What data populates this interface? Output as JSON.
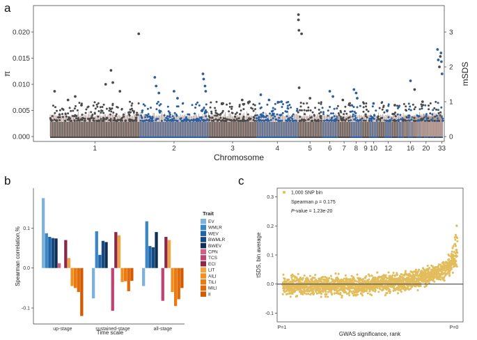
{
  "panel_labels": {
    "a": "a",
    "b": "b",
    "c": "c"
  },
  "colors": {
    "chr_dark": "#4a4a4a",
    "chr_blue": "#2a5fa0",
    "pi_line": "#b49a92",
    "gold": "#e3bd5c",
    "traits": [
      "#7fb2d8",
      "#3a86c4",
      "#1e64a6",
      "#174b80",
      "#0f3055",
      "#d45f86",
      "#bd4572",
      "#8b2747",
      "#f7a241",
      "#f19020",
      "#ea7a12",
      "#e06a08",
      "#d45a00"
    ]
  },
  "chart_data": [
    {
      "id": "a",
      "type": "scatter",
      "title": "",
      "xlabel": "Chromosome",
      "ylabel_left": "π",
      "ylabel_right": "mSDS",
      "ylim_left": [
        0,
        0.024
      ],
      "ylim_right": [
        0,
        3.6
      ],
      "yticks_left": [
        "0.000",
        "0.005",
        "0.010",
        "0.015",
        "0.020"
      ],
      "yticks_left_values": [
        0,
        0.005,
        0.01,
        0.015,
        0.02
      ],
      "yticks_right": [
        "0",
        "1",
        "2",
        "3"
      ],
      "yticks_right_values": [
        0,
        1,
        2,
        3
      ],
      "chromosomes": [
        {
          "label": "1",
          "len": 26,
          "color": "dark"
        },
        {
          "label": "2",
          "len": 20,
          "color": "blue"
        },
        {
          "label": "3",
          "len": 14,
          "color": "dark"
        },
        {
          "label": "4",
          "len": 12,
          "color": "blue"
        },
        {
          "label": "5",
          "len": 7,
          "color": "dark"
        },
        {
          "label": "6",
          "len": 4.5,
          "color": "blue"
        },
        {
          "label": "7",
          "len": 3.8,
          "color": "dark"
        },
        {
          "label": "8",
          "len": 3.2,
          "color": "blue"
        },
        {
          "label": "9",
          "len": 2.3,
          "color": "dark"
        },
        {
          "label": "10",
          "len": 2.3,
          "color": "blue"
        },
        {
          "label": "",
          "len": 2.1,
          "color": "dark"
        },
        {
          "label": "12",
          "len": 2.1,
          "color": "blue"
        },
        {
          "label": "",
          "len": 1.7,
          "color": "dark"
        },
        {
          "label": "",
          "len": 1.6,
          "color": "blue"
        },
        {
          "label": "",
          "len": 1.4,
          "color": "dark"
        },
        {
          "label": "16",
          "len": 1.4,
          "color": "blue"
        },
        {
          "label": "",
          "len": 1.2,
          "color": "dark"
        },
        {
          "label": "",
          "len": 1.1,
          "color": "blue"
        },
        {
          "label": "",
          "len": 1.0,
          "color": "dark"
        },
        {
          "label": "20",
          "len": 1.0,
          "color": "blue"
        },
        {
          "label": "",
          "len": 0.9,
          "color": "dark"
        },
        {
          "label": "",
          "len": 0.8,
          "color": "blue"
        },
        {
          "label": "",
          "len": 0.8,
          "color": "dark"
        },
        {
          "label": "",
          "len": 0.7,
          "color": "blue"
        },
        {
          "label": "",
          "len": 0.6,
          "color": "dark"
        },
        {
          "label": "33",
          "len": 0.6,
          "color": "blue"
        }
      ],
      "outliers_mSDS": [
        {
          "chr": 0,
          "pos": 0.05,
          "v": 1.3
        },
        {
          "chr": 0,
          "pos": 0.2,
          "v": 1.05
        },
        {
          "chr": 0,
          "pos": 0.28,
          "v": 1.15
        },
        {
          "chr": 0,
          "pos": 0.35,
          "v": 0.9
        },
        {
          "chr": 0,
          "pos": 0.62,
          "v": 1.5
        },
        {
          "chr": 0,
          "pos": 0.68,
          "v": 1.9
        },
        {
          "chr": 0,
          "pos": 0.7,
          "v": 1.55
        },
        {
          "chr": 0,
          "pos": 0.78,
          "v": 1.3
        },
        {
          "chr": 0,
          "pos": 0.99,
          "v": 2.95
        },
        {
          "chr": 1,
          "pos": 0.22,
          "v": 1.7
        },
        {
          "chr": 1,
          "pos": 0.24,
          "v": 1.45
        },
        {
          "chr": 1,
          "pos": 0.28,
          "v": 1.25
        },
        {
          "chr": 1,
          "pos": 0.5,
          "v": 1.3
        },
        {
          "chr": 1,
          "pos": 0.55,
          "v": 1.1
        },
        {
          "chr": 1,
          "pos": 0.92,
          "v": 1.8
        },
        {
          "chr": 1,
          "pos": 0.93,
          "v": 1.65
        },
        {
          "chr": 1,
          "pos": 0.95,
          "v": 1.45
        },
        {
          "chr": 1,
          "pos": 0.96,
          "v": 1.3
        },
        {
          "chr": 2,
          "pos": 0.3,
          "v": 0.95
        },
        {
          "chr": 2,
          "pos": 0.7,
          "v": 1.05
        },
        {
          "chr": 2,
          "pos": 0.85,
          "v": 1.0
        },
        {
          "chr": 3,
          "pos": 0.1,
          "v": 1.2
        },
        {
          "chr": 3,
          "pos": 0.3,
          "v": 1.05
        },
        {
          "chr": 3,
          "pos": 0.6,
          "v": 1.0
        },
        {
          "chr": 4,
          "pos": 0.02,
          "v": 3.5
        },
        {
          "chr": 4,
          "pos": 0.02,
          "v": 3.35
        },
        {
          "chr": 4,
          "pos": 0.04,
          "v": 3.05
        },
        {
          "chr": 4,
          "pos": 0.15,
          "v": 2.95
        },
        {
          "chr": 4,
          "pos": 0.05,
          "v": 1.4
        },
        {
          "chr": 4,
          "pos": 0.5,
          "v": 1.1
        },
        {
          "chr": 5,
          "pos": 0.5,
          "v": 1.3
        },
        {
          "chr": 5,
          "pos": 0.7,
          "v": 1.15
        },
        {
          "chr": 6,
          "pos": 0.4,
          "v": 1.05
        },
        {
          "chr": 7,
          "pos": 0.3,
          "v": 1.35
        },
        {
          "chr": 7,
          "pos": 0.5,
          "v": 1.25
        },
        {
          "chr": 7,
          "pos": 0.6,
          "v": 1.1
        },
        {
          "chr": 9,
          "pos": 0.5,
          "v": 0.95
        },
        {
          "chr": 12,
          "pos": 0.5,
          "v": 0.9
        },
        {
          "chr": 15,
          "pos": 0.5,
          "v": 1.6
        },
        {
          "chr": 16,
          "pos": 0.4,
          "v": 1.35
        },
        {
          "chr": 18,
          "pos": 0.5,
          "v": 1.0
        },
        {
          "chr": 23,
          "pos": 0.5,
          "v": 2.5
        },
        {
          "chr": 23,
          "pos": 0.8,
          "v": 2.2
        },
        {
          "chr": 24,
          "pos": 0.3,
          "v": 2.0
        },
        {
          "chr": 24,
          "pos": 0.8,
          "v": 2.3
        },
        {
          "chr": 25,
          "pos": 0.3,
          "v": 2.15
        },
        {
          "chr": 25,
          "pos": 0.6,
          "v": 1.8
        },
        {
          "chr": 25,
          "pos": 0.1,
          "v": 2.4
        }
      ]
    },
    {
      "id": "b",
      "type": "bar",
      "xlabel": "Time scale",
      "ylabel": "Spearman correlation,%",
      "ylim": [
        -0.14,
        0.2
      ],
      "yticks": [
        "0.1",
        "0.0",
        "-0.1"
      ],
      "yticks_values": [
        0.1,
        0.0,
        -0.1
      ],
      "categories": [
        "up-stage",
        "sustained-stage",
        "all-stage"
      ],
      "legend_title": "Trait",
      "series": [
        {
          "name": "EV",
          "values": [
            0.175,
            -0.076,
            -0.045
          ]
        },
        {
          "name": "WMLR",
          "values": [
            0.087,
            0.092,
            0.117
          ]
        },
        {
          "name": "WEV",
          "values": [
            0.078,
            0.033,
            0.055
          ]
        },
        {
          "name": "BWMLR",
          "values": [
            0.075,
            0.068,
            0.052
          ]
        },
        {
          "name": "BWEV",
          "values": [
            0.074,
            0.065,
            0.09
          ]
        },
        {
          "name": "CPN",
          "values": [
            0.012,
            0.0,
            0.0
          ]
        },
        {
          "name": "TCS",
          "values": [
            0.0,
            -0.107,
            -0.082
          ]
        },
        {
          "name": "ECI",
          "values": [
            0.07,
            0.09,
            0.078
          ]
        },
        {
          "name": "LIT",
          "values": [
            0.025,
            0.082,
            0.07
          ]
        },
        {
          "name": "AILI",
          "values": [
            -0.045,
            -0.035,
            -0.06
          ]
        },
        {
          "name": "TILI",
          "values": [
            -0.05,
            -0.033,
            -0.095
          ]
        },
        {
          "name": "MILI",
          "values": [
            -0.06,
            -0.058,
            -0.078
          ]
        },
        {
          "name": "II",
          "values": [
            -0.12,
            -0.032,
            -0.05
          ]
        }
      ]
    },
    {
      "id": "c",
      "type": "scatter",
      "xlabel": "GWAS significance, rank",
      "ylabel": "tSDS, bin average",
      "ylim": [
        -0.13,
        0.33
      ],
      "yticks": [
        "0.3",
        "0.2",
        "0.1",
        "0.0",
        "-0.1"
      ],
      "yticks_values": [
        0.3,
        0.2,
        0.1,
        0.0,
        -0.1
      ],
      "xtick_left": "P=1",
      "xtick_right": "P=0",
      "legend_label": "1,000 SNP bin",
      "stat_rho": "Spearman ρ = 0.175",
      "stat_p_prefix": "P",
      "stat_p_rest": "-value = 1.23e-20",
      "n_points": 1800,
      "trend_start": -0.005,
      "trend_end": 0.08
    }
  ]
}
